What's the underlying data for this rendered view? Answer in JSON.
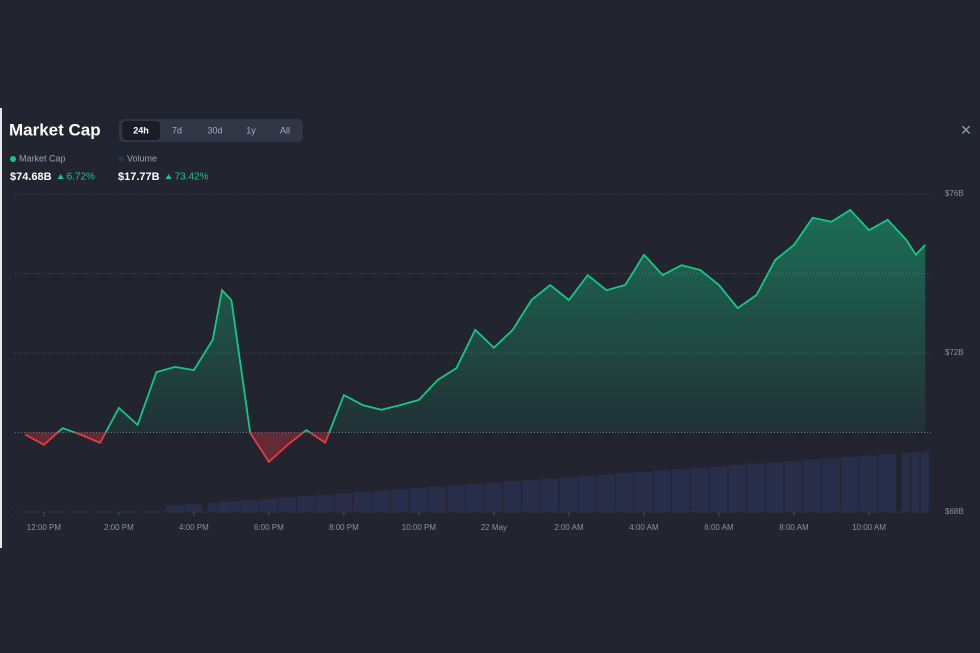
{
  "chart_data": {
    "type": "line",
    "title": "Market Cap",
    "tabs": [
      "24h",
      "7d",
      "30d",
      "1y",
      "All"
    ],
    "active_tab": 0,
    "stats": [
      {
        "value": "$74.68B",
        "change": "6.72%"
      },
      {
        "value": "$17.77B",
        "change": "73.42%"
      }
    ],
    "x": [
      -0.5,
      0,
      0.5,
      1,
      1.5,
      2,
      2.5,
      3,
      3.5,
      4,
      4.5,
      4.75,
      5,
      5.5,
      6,
      6.5,
      7,
      7.5,
      8,
      8.5,
      9,
      9.5,
      10,
      10.5,
      11,
      11.5,
      12,
      12.5,
      13,
      13.5,
      14,
      14.5,
      15,
      15.5,
      16,
      16.5,
      17,
      17.5,
      18,
      18.5,
      19,
      19.5,
      20,
      20.5,
      21,
      21.5,
      22,
      22.5,
      23,
      23.25,
      23.5
    ],
    "series": [
      {
        "name": "Market Cap",
        "color": "#16c784",
        "down_color": "#ea3943",
        "values": [
          69.95,
          69.69,
          70.11,
          69.94,
          69.74,
          70.62,
          70.19,
          71.52,
          71.65,
          71.57,
          72.33,
          73.58,
          73.33,
          69.99,
          69.26,
          69.69,
          70.06,
          69.74,
          70.94,
          70.69,
          70.57,
          70.69,
          70.82,
          71.32,
          71.62,
          72.58,
          72.13,
          72.58,
          73.33,
          73.71,
          73.33,
          73.96,
          73.58,
          73.71,
          74.47,
          73.96,
          74.21,
          74.09,
          73.71,
          73.13,
          73.46,
          74.34,
          74.72,
          75.4,
          75.3,
          75.6,
          75.09,
          75.35,
          74.84,
          74.47,
          74.72
        ]
      },
      {
        "name": "Volume",
        "color": "#2b3150",
        "axis": "y2",
        "values": [
          null,
          null,
          null,
          null,
          null,
          null,
          null,
          null,
          2,
          2.4,
          2.9,
          3.1,
          3.3,
          3.7,
          4.1,
          4.6,
          5,
          5.4,
          5.8,
          6.3,
          6.7,
          7.1,
          7.5,
          8,
          8.4,
          8.8,
          9.2,
          9.7,
          10.1,
          10.5,
          10.9,
          11.4,
          11.8,
          12.2,
          12.6,
          13.1,
          13.5,
          13.9,
          14.3,
          14.8,
          15.2,
          15.6,
          16,
          16.5,
          16.9,
          17.3,
          17.7,
          18.2,
          18.6,
          18.8,
          19
        ]
      }
    ],
    "baseline": 70,
    "xlim": [
      -0.77,
      23.68
    ],
    "xticks": [
      {
        "value": 0,
        "label": "12:00 PM"
      },
      {
        "value": 2,
        "label": "2:00 PM"
      },
      {
        "value": 4,
        "label": "4:00 PM"
      },
      {
        "value": 6,
        "label": "6:00 PM"
      },
      {
        "value": 8,
        "label": "8:00 PM"
      },
      {
        "value": 10,
        "label": "10:00 PM"
      },
      {
        "value": 12,
        "label": "22 May"
      },
      {
        "value": 14,
        "label": "2:00 AM"
      },
      {
        "value": 16,
        "label": "4:00 AM"
      },
      {
        "value": 18,
        "label": "6:00 AM"
      },
      {
        "value": 20,
        "label": "8:00 AM"
      },
      {
        "value": 22,
        "label": "10:00 AM"
      }
    ],
    "ylim": [
      68,
      76
    ],
    "yticks": [
      {
        "value": 68,
        "label": "$68B"
      },
      {
        "value": 72,
        "label": "$72B"
      },
      {
        "value": 76,
        "label": "$76B"
      }
    ],
    "minor_yticks": [
      74
    ],
    "y2lim": [
      0,
      100
    ],
    "grid": true
  }
}
